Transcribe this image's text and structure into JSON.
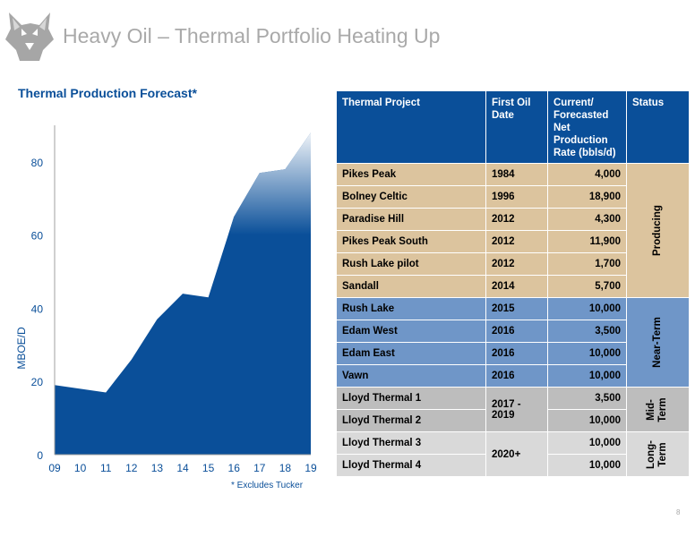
{
  "header": {
    "title": "Heavy Oil – Thermal Portfolio Heating Up",
    "logo_icon": "husky-dog-head-icon"
  },
  "chart": {
    "title": "Thermal Production Forecast*",
    "footnote": "* Excludes Tucker"
  },
  "chart_data": {
    "type": "area",
    "title": "Thermal Production Forecast*",
    "xlabel": "",
    "ylabel": "MBOE/D",
    "categories": [
      "09",
      "10",
      "11",
      "12",
      "13",
      "14",
      "15",
      "16",
      "17",
      "18",
      "19"
    ],
    "values": [
      19,
      18,
      17,
      26,
      37,
      44,
      43,
      65,
      77,
      78,
      88
    ],
    "y_ticks": [
      "0",
      "20",
      "40",
      "60",
      "80"
    ],
    "ylim": [
      0,
      90
    ],
    "grid": false,
    "colors": {
      "solid": "#0a4f99",
      "faded": "#ffffff"
    }
  },
  "table": {
    "headers": [
      "Thermal Project",
      "First Oil Date",
      "Current/ Forecasted Net Production Rate (bbls/d)",
      "Status"
    ],
    "rows": [
      {
        "project": "Pikes Peak",
        "date": "1984",
        "rate": "4,000"
      },
      {
        "project": "Bolney Celtic",
        "date": "1996",
        "rate": "18,900"
      },
      {
        "project": "Paradise Hill",
        "date": "2012",
        "rate": "4,300"
      },
      {
        "project": "Pikes Peak South",
        "date": "2012",
        "rate": "11,900"
      },
      {
        "project": "Rush Lake pilot",
        "date": "2012",
        "rate": "1,700"
      },
      {
        "project": "Sandall",
        "date": "2014",
        "rate": "5,700"
      },
      {
        "project": "Rush Lake",
        "date": "2015",
        "rate": "10,000"
      },
      {
        "project": "Edam West",
        "date": "2016",
        "rate": "3,500"
      },
      {
        "project": "Edam East",
        "date": "2016",
        "rate": "10,000"
      },
      {
        "project": "Vawn",
        "date": "2016",
        "rate": "10,000"
      },
      {
        "project": "Lloyd Thermal 1",
        "date": "2017 - 2019",
        "rate": "3,500"
      },
      {
        "project": "Lloyd Thermal 2",
        "date": "",
        "rate": "10,000"
      },
      {
        "project": "Lloyd Thermal 3",
        "date": "2020+",
        "rate": "10,000"
      },
      {
        "project": "Lloyd Thermal 4",
        "date": "",
        "rate": "10,000"
      }
    ],
    "status_groups": {
      "producing": "Producing",
      "near_term": "Near-Term",
      "mid_term": "Mid- Term",
      "long_term": "Long- Term"
    },
    "colors": {
      "header": "#0a4f99",
      "producing": "#dcc49e",
      "near_term": "#6f96c8",
      "mid_term": "#bdbdbd",
      "long_term": "#d9d9d9"
    }
  },
  "footer": {
    "page_number": "8"
  }
}
